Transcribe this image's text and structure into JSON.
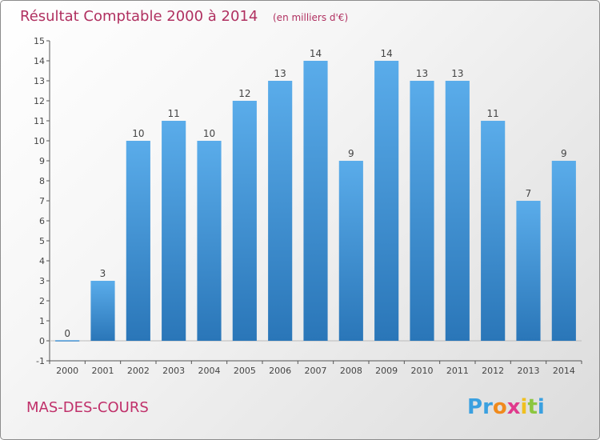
{
  "chart_data": {
    "type": "bar",
    "title": "Résultat Comptable 2000 à 2014",
    "subtitle": "(en milliers d'€)",
    "categories": [
      "2000",
      "2001",
      "2002",
      "2003",
      "2004",
      "2005",
      "2006",
      "2007",
      "2008",
      "2009",
      "2010",
      "2011",
      "2012",
      "2013",
      "2014"
    ],
    "values": [
      0,
      3,
      10,
      11,
      10,
      12,
      13,
      14,
      9,
      14,
      13,
      13,
      11,
      7,
      9
    ],
    "value_labels": [
      "0",
      "3",
      "10",
      "11",
      "10",
      "12",
      "13",
      "14",
      "9",
      "14",
      "13",
      "13",
      "11",
      "7",
      "9"
    ],
    "ylim": [
      -1,
      15
    ],
    "yticks": [
      -1,
      0,
      1,
      2,
      3,
      4,
      5,
      6,
      7,
      8,
      9,
      10,
      11,
      12,
      13,
      14,
      15
    ],
    "ytick_labels": [
      "-1",
      "0",
      "1",
      "2",
      "3",
      "4",
      "5",
      "6",
      "7",
      "8",
      "9",
      "10",
      "11",
      "12",
      "13",
      "14",
      "15"
    ],
    "xlabel": "",
    "ylabel": "",
    "grid": false,
    "colors": {
      "bar_top": "#5aacea",
      "bar_bottom": "#2a76b8",
      "axis": "#555555",
      "title": "#b03060"
    }
  },
  "footer": {
    "commune": "MAS-DES-COURS",
    "logo_letters": [
      "P",
      "r",
      "o",
      "x",
      "i",
      "t",
      "i"
    ],
    "logo_colors": [
      "#3aa0e0",
      "#3aa0e0",
      "#f08a1c",
      "#e03a8c",
      "#f0c020",
      "#8cc63f",
      "#3aa0e0"
    ]
  }
}
